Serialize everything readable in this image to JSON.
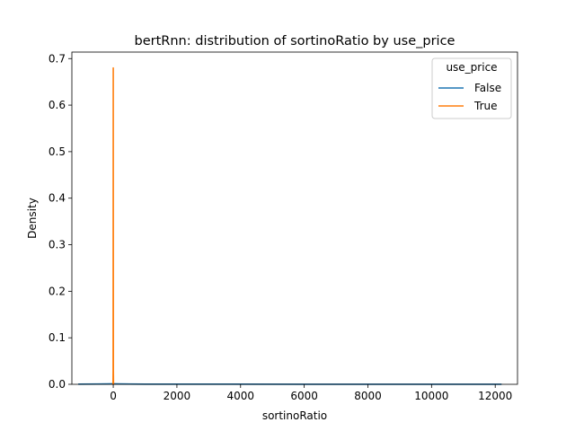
{
  "chart_data": {
    "type": "line",
    "subtype": "kde",
    "title": "bertRnn: distribution of sortinoRatio by use_price",
    "xlabel": "sortinoRatio",
    "ylabel": "Density",
    "xlim": [
      -1300,
      12700
    ],
    "ylim": [
      0,
      0.714
    ],
    "xticks": [
      0,
      2000,
      4000,
      6000,
      8000,
      10000,
      12000
    ],
    "xtick_labels": [
      "0",
      "2000",
      "4000",
      "6000",
      "8000",
      "10000",
      "12000"
    ],
    "yticks": [
      0.0,
      0.1,
      0.2,
      0.3,
      0.4,
      0.5,
      0.6,
      0.7
    ],
    "ytick_labels": [
      "0.0",
      "0.1",
      "0.2",
      "0.3",
      "0.4",
      "0.5",
      "0.6",
      "0.7"
    ],
    "grid": false,
    "legend": {
      "title": "use_price",
      "position": "top-right",
      "entries": [
        {
          "label": "False",
          "color": "#1f77b4"
        },
        {
          "label": "True",
          "color": "#ff7f0e"
        }
      ]
    },
    "series": [
      {
        "name": "False",
        "color": "#1f77b4",
        "x": [
          -1100,
          -500,
          -200,
          0,
          200,
          500,
          1000,
          3000,
          6000,
          9000,
          12200
        ],
        "y": [
          0.0003,
          0.0006,
          0.0009,
          0.0012,
          0.0009,
          0.0006,
          0.0004,
          0.0003,
          0.0002,
          0.0002,
          0.0001
        ]
      },
      {
        "name": "True",
        "color": "#ff7f0e",
        "x": [
          -20,
          -8,
          -4,
          -2,
          0,
          2,
          4,
          8,
          20
        ],
        "y": [
          0.0,
          0.0,
          0.03,
          0.34,
          0.68,
          0.34,
          0.03,
          0.0,
          0.0
        ]
      }
    ]
  }
}
